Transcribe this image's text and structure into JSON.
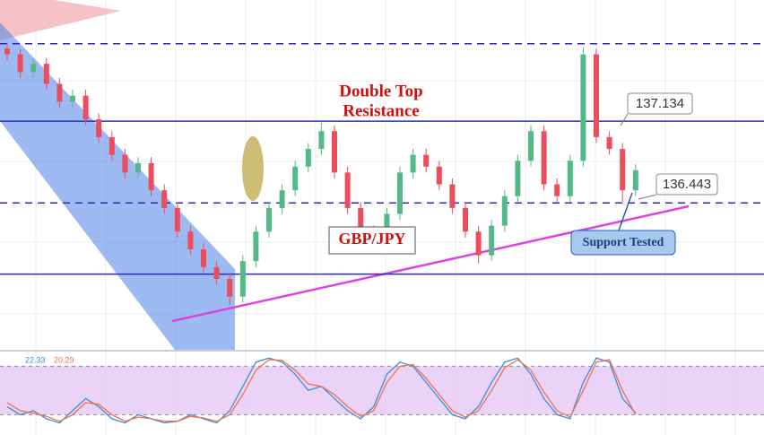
{
  "chart_data": [
    {
      "type": "candlestick",
      "open": [
        137.75,
        137.7,
        137.55,
        137.62,
        137.45,
        137.3,
        137.35,
        137.15,
        137.0,
        136.85,
        136.7,
        136.78,
        136.55,
        136.4,
        136.2,
        136.05,
        135.9,
        135.8,
        135.65,
        135.95,
        136.2,
        136.4,
        136.55,
        136.75,
        136.9,
        137.05,
        136.7,
        136.4,
        136.2,
        136.08,
        136.35,
        136.7,
        136.85,
        136.75,
        136.6,
        136.4,
        136.2,
        136.0,
        136.25,
        136.5,
        136.8,
        137.05,
        136.6,
        136.5,
        136.8,
        137.7,
        137.0,
        136.9,
        136.55
      ],
      "high": [
        137.8,
        137.75,
        137.67,
        137.67,
        137.5,
        137.4,
        137.4,
        137.2,
        137.05,
        136.9,
        136.83,
        136.83,
        136.6,
        136.45,
        136.25,
        136.1,
        135.95,
        135.85,
        136.0,
        136.25,
        136.45,
        136.6,
        136.8,
        136.95,
        137.12,
        137.1,
        136.75,
        136.45,
        136.25,
        136.4,
        136.75,
        136.9,
        136.9,
        136.8,
        136.65,
        136.45,
        136.25,
        136.3,
        136.55,
        136.85,
        137.1,
        137.1,
        136.65,
        136.85,
        137.76,
        137.75,
        137.05,
        136.95,
        136.77
      ],
      "low": [
        137.65,
        137.5,
        137.5,
        137.4,
        137.25,
        137.25,
        137.1,
        136.95,
        136.8,
        136.65,
        136.65,
        136.5,
        136.35,
        136.15,
        136.0,
        135.85,
        135.75,
        135.58,
        135.6,
        135.9,
        136.15,
        136.35,
        136.5,
        136.7,
        136.85,
        136.65,
        136.35,
        136.15,
        136.03,
        136.03,
        136.3,
        136.65,
        136.7,
        136.55,
        136.35,
        136.15,
        135.93,
        135.95,
        136.2,
        136.45,
        136.75,
        136.55,
        136.45,
        136.45,
        136.75,
        136.95,
        136.85,
        136.45,
        136.5
      ],
      "close": [
        137.7,
        137.55,
        137.62,
        137.45,
        137.3,
        137.35,
        137.15,
        137.0,
        136.85,
        136.7,
        136.78,
        136.55,
        136.4,
        136.2,
        136.05,
        135.9,
        135.8,
        135.65,
        135.95,
        136.2,
        136.4,
        136.55,
        136.75,
        136.9,
        137.05,
        136.7,
        136.4,
        136.2,
        136.08,
        136.35,
        136.7,
        136.85,
        136.75,
        136.6,
        136.4,
        136.2,
        136.0,
        136.25,
        136.5,
        136.8,
        137.05,
        136.6,
        136.5,
        136.8,
        137.7,
        137.0,
        136.9,
        136.55,
        136.72
      ],
      "up_color": "#53b987",
      "down_color": "#eb4d5c",
      "ylim": [
        135.2,
        138.16
      ],
      "levels": [
        137.79,
        137.134,
        136.443,
        135.84
      ],
      "level_styles": [
        "dashed",
        "solid",
        "dashed",
        "solid"
      ],
      "level_color": "#2b2bb8",
      "annotations": [
        "Double Top",
        "Resistance",
        "GBP/JPY",
        "Support Tested"
      ]
    },
    {
      "type": "line",
      "series": [
        {
          "color": "#3b8fd9",
          "values": [
            30,
            20,
            25,
            15,
            10,
            25,
            40,
            30,
            15,
            10,
            20,
            15,
            10,
            12,
            20,
            15,
            10,
            25,
            55,
            85,
            90,
            85,
            70,
            50,
            55,
            40,
            25,
            15,
            30,
            70,
            85,
            80,
            60,
            40,
            20,
            15,
            30,
            60,
            85,
            90,
            70,
            40,
            20,
            15,
            60,
            90,
            85,
            40,
            22.33
          ]
        },
        {
          "color": "#f0714a",
          "values": [
            35,
            25,
            22,
            18,
            12,
            20,
            35,
            33,
            20,
            12,
            17,
            15,
            12,
            12,
            18,
            16,
            12,
            20,
            45,
            75,
            88,
            87,
            75,
            58,
            55,
            45,
            30,
            18,
            25,
            60,
            80,
            82,
            65,
            45,
            25,
            17,
            25,
            50,
            78,
            88,
            75,
            48,
            25,
            17,
            50,
            85,
            88,
            50,
            20.29
          ]
        }
      ],
      "ylim": [
        -5,
        98
      ],
      "band": [
        20,
        80
      ],
      "band_color": "#e6c8f5"
    }
  ]
}
